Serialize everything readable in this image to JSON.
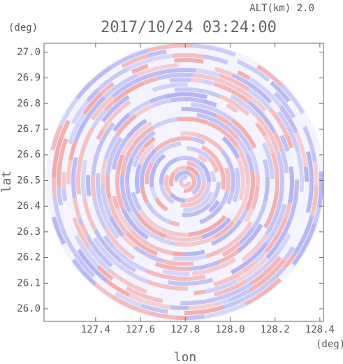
{
  "chart_data": {
    "type": "radar-ppi",
    "title": "2017/10/24 03:24:00",
    "subtitle": "ALT(km) 2.0",
    "x_label": "lon",
    "y_label": "lat",
    "x_unit": "(deg)",
    "y_unit": "(deg)",
    "xlim": [
      127.17,
      128.416
    ],
    "ylim": [
      25.951,
      27.035
    ],
    "xticks": [
      127.4,
      127.6,
      127.8,
      {
        "value": 128.0,
        "label": "128.0"
      },
      128.2,
      128.4
    ],
    "yticks": [
      {
        "value": 26.0,
        "label": "26.0"
      },
      26.1,
      26.2,
      26.3,
      26.4,
      26.5,
      26.6,
      26.7,
      26.8,
      26.9,
      {
        "value": 27.0,
        "label": "27.0"
      }
    ],
    "colors": [
      "#f3a9a9",
      "#b3b3f2"
    ]
  }
}
